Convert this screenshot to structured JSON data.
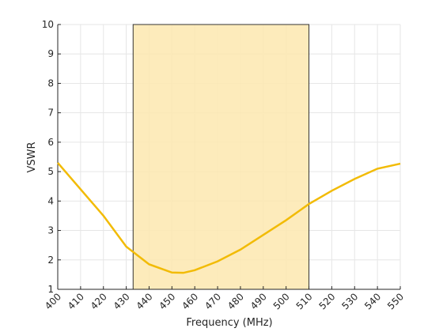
{
  "chart_data": {
    "type": "line",
    "x_label": "Frequency (MHz)",
    "y_label": "VSWR",
    "x": [
      400,
      410,
      420,
      430,
      440,
      450,
      455,
      460,
      470,
      480,
      490,
      500,
      510,
      520,
      530,
      540,
      550
    ],
    "series": [
      {
        "color": "#f2bb05",
        "values": [
          5.3,
          4.4,
          3.5,
          2.45,
          1.85,
          1.57,
          1.56,
          1.65,
          1.95,
          2.35,
          2.85,
          3.35,
          3.9,
          4.35,
          4.75,
          5.1,
          5.27
        ]
      }
    ],
    "highlight": {
      "xmin": 433,
      "xmax": 510,
      "color": "#fde7af"
    },
    "xlim": [
      400,
      550
    ],
    "xticks": [
      400,
      410,
      420,
      430,
      440,
      450,
      460,
      470,
      480,
      490,
      500,
      510,
      520,
      530,
      540,
      550
    ],
    "ylim": [
      1,
      10
    ],
    "yticks": [
      1,
      2,
      3,
      4,
      5,
      6,
      7,
      8,
      9,
      10
    ],
    "grid": true
  }
}
